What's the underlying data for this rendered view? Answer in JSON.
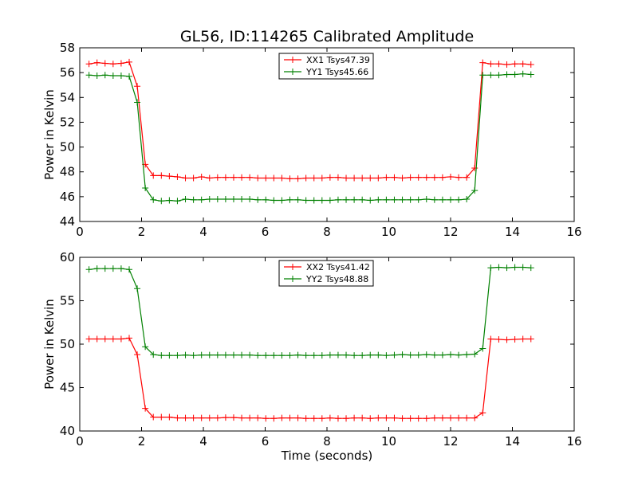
{
  "figure": {
    "title": "GL56, ID:114265 Calibrated Amplitude"
  },
  "chart_data": [
    {
      "type": "line",
      "title": "GL56, ID:114265 Calibrated Amplitude",
      "xlabel": "",
      "ylabel": "Power in Kelvin",
      "xlim": [
        0,
        16
      ],
      "ylim": [
        44,
        58
      ],
      "xticks": [
        0,
        2,
        4,
        6,
        8,
        10,
        12,
        14,
        16
      ],
      "yticks": [
        44,
        46,
        48,
        50,
        52,
        54,
        56,
        58
      ],
      "grid": false,
      "legend_position": "top-center",
      "x": [
        0.3,
        0.56,
        0.82,
        1.08,
        1.34,
        1.6,
        1.86,
        2.12,
        2.38,
        2.64,
        2.9,
        3.16,
        3.42,
        3.68,
        3.94,
        4.2,
        4.46,
        4.72,
        4.98,
        5.24,
        5.5,
        5.76,
        6.02,
        6.28,
        6.54,
        6.8,
        7.06,
        7.32,
        7.58,
        7.84,
        8.1,
        8.36,
        8.62,
        8.88,
        9.14,
        9.4,
        9.66,
        9.92,
        10.18,
        10.44,
        10.7,
        10.96,
        11.22,
        11.48,
        11.74,
        12.0,
        12.26,
        12.52,
        12.78,
        13.04,
        13.3,
        13.56,
        13.82,
        14.08,
        14.34,
        14.6
      ],
      "series": [
        {
          "name": "XX1 Tsys47.39",
          "color": "#ff0000",
          "values": [
            56.7,
            56.8,
            56.75,
            56.7,
            56.75,
            56.85,
            54.9,
            48.6,
            47.7,
            47.7,
            47.65,
            47.6,
            47.5,
            47.5,
            47.6,
            47.5,
            47.55,
            47.55,
            47.55,
            47.55,
            47.55,
            47.5,
            47.5,
            47.5,
            47.5,
            47.45,
            47.45,
            47.5,
            47.5,
            47.5,
            47.55,
            47.55,
            47.5,
            47.5,
            47.5,
            47.5,
            47.5,
            47.55,
            47.55,
            47.5,
            47.55,
            47.55,
            47.55,
            47.55,
            47.55,
            47.6,
            47.55,
            47.55,
            48.3,
            56.8,
            56.7,
            56.7,
            56.65,
            56.7,
            56.7,
            56.65
          ]
        },
        {
          "name": "YY1 Tsys45.66",
          "color": "#008000",
          "values": [
            55.8,
            55.75,
            55.8,
            55.75,
            55.75,
            55.7,
            53.6,
            46.7,
            45.75,
            45.65,
            45.7,
            45.65,
            45.8,
            45.75,
            45.75,
            45.8,
            45.8,
            45.8,
            45.8,
            45.8,
            45.8,
            45.75,
            45.75,
            45.7,
            45.7,
            45.75,
            45.75,
            45.7,
            45.7,
            45.7,
            45.7,
            45.75,
            45.75,
            45.75,
            45.75,
            45.7,
            45.75,
            45.75,
            45.75,
            45.75,
            45.75,
            45.75,
            45.8,
            45.75,
            45.75,
            45.75,
            45.75,
            45.8,
            46.5,
            55.8,
            55.8,
            55.8,
            55.85,
            55.85,
            55.9,
            55.85
          ]
        }
      ]
    },
    {
      "type": "line",
      "title": "",
      "xlabel": "Time (seconds)",
      "ylabel": "Power in Kelvin",
      "xlim": [
        0,
        16
      ],
      "ylim": [
        40,
        60
      ],
      "xticks": [
        0,
        2,
        4,
        6,
        8,
        10,
        12,
        14,
        16
      ],
      "yticks": [
        40,
        45,
        50,
        55,
        60
      ],
      "grid": false,
      "legend_position": "top-center",
      "x": [
        0.3,
        0.56,
        0.82,
        1.08,
        1.34,
        1.6,
        1.86,
        2.12,
        2.38,
        2.64,
        2.9,
        3.16,
        3.42,
        3.68,
        3.94,
        4.2,
        4.46,
        4.72,
        4.98,
        5.24,
        5.5,
        5.76,
        6.02,
        6.28,
        6.54,
        6.8,
        7.06,
        7.32,
        7.58,
        7.84,
        8.1,
        8.36,
        8.62,
        8.88,
        9.14,
        9.4,
        9.66,
        9.92,
        10.18,
        10.44,
        10.7,
        10.96,
        11.22,
        11.48,
        11.74,
        12.0,
        12.26,
        12.52,
        12.78,
        13.04,
        13.3,
        13.56,
        13.82,
        14.08,
        14.34,
        14.6
      ],
      "series": [
        {
          "name": "XX2 Tsys41.42",
          "color": "#ff0000",
          "values": [
            50.6,
            50.6,
            50.6,
            50.6,
            50.6,
            50.7,
            48.8,
            42.6,
            41.6,
            41.6,
            41.6,
            41.5,
            41.5,
            41.5,
            41.5,
            41.5,
            41.5,
            41.55,
            41.55,
            41.5,
            41.5,
            41.5,
            41.45,
            41.45,
            41.5,
            41.5,
            41.5,
            41.45,
            41.45,
            41.45,
            41.5,
            41.45,
            41.45,
            41.5,
            41.5,
            41.45,
            41.5,
            41.5,
            41.5,
            41.45,
            41.45,
            41.45,
            41.45,
            41.5,
            41.5,
            41.5,
            41.5,
            41.5,
            41.5,
            42.1,
            50.6,
            50.55,
            50.5,
            50.55,
            50.6,
            50.6
          ]
        },
        {
          "name": "YY2 Tsys48.88",
          "color": "#008000",
          "values": [
            58.6,
            58.7,
            58.7,
            58.7,
            58.7,
            58.6,
            56.4,
            49.7,
            48.8,
            48.7,
            48.7,
            48.7,
            48.75,
            48.7,
            48.75,
            48.75,
            48.75,
            48.75,
            48.75,
            48.75,
            48.75,
            48.7,
            48.7,
            48.7,
            48.7,
            48.7,
            48.75,
            48.7,
            48.7,
            48.7,
            48.75,
            48.75,
            48.75,
            48.7,
            48.7,
            48.75,
            48.75,
            48.7,
            48.75,
            48.8,
            48.75,
            48.75,
            48.8,
            48.75,
            48.75,
            48.8,
            48.75,
            48.8,
            48.85,
            49.5,
            58.8,
            58.85,
            58.8,
            58.85,
            58.85,
            58.8
          ]
        }
      ]
    }
  ]
}
